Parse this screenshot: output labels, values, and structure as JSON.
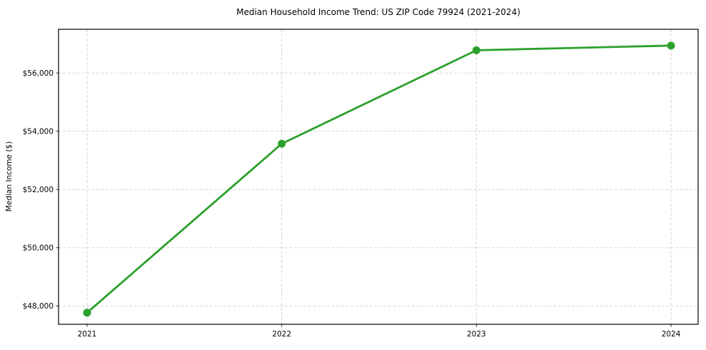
{
  "chart": {
    "title": "Median Household Income Trend: US ZIP Code 79924 (2021-2024)",
    "ylabel": "Median Income ($)"
  },
  "chart_data": {
    "type": "line",
    "title": "Median Household Income Trend: US ZIP Code 79924 (2021-2024)",
    "xlabel": "",
    "ylabel": "Median Income ($)",
    "categories": [
      "2021",
      "2022",
      "2023",
      "2024"
    ],
    "values": [
      47770,
      53570,
      56780,
      56940
    ],
    "ylim": [
      47370,
      57500
    ],
    "y_ticks": [
      {
        "value": 48000,
        "label": "$48,000"
      },
      {
        "value": 50000,
        "label": "$50,000"
      },
      {
        "value": 52000,
        "label": "$52,000"
      },
      {
        "value": 54000,
        "label": "$54,000"
      },
      {
        "value": 56000,
        "label": "$56,000"
      }
    ],
    "grid": true,
    "grid_style": "dashed",
    "legend_position": "none",
    "line_color": "#2ca02c",
    "marker": "circle",
    "marker_color": "#2ca02c",
    "grid_color": "#cfcfcf",
    "frame_color": "#000000",
    "background_color": "#ffffff"
  }
}
